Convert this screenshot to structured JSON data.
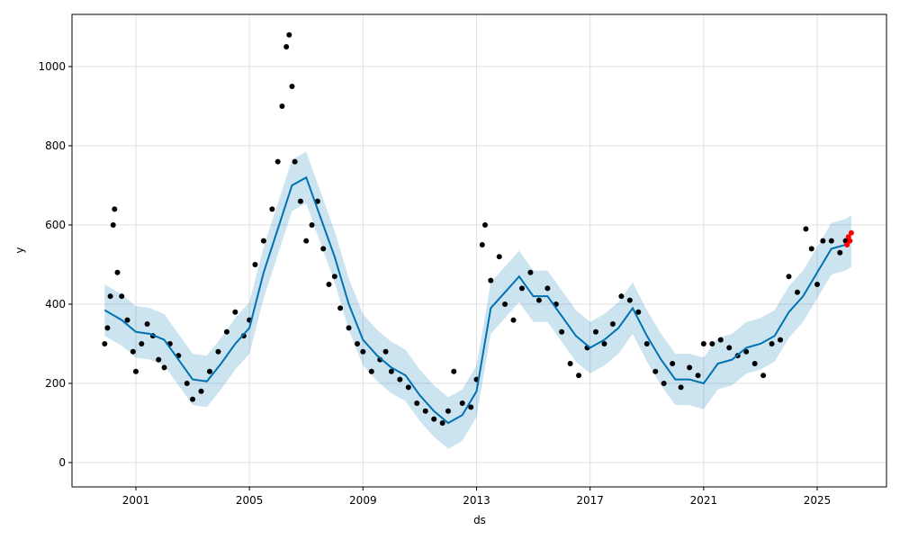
{
  "chart_data": {
    "type": "forecast",
    "xlabel": "ds",
    "ylabel": "y",
    "xlim": [
      1998.75,
      2027.44
    ],
    "ylim": [
      -61.4,
      1131.8
    ],
    "xticks": [
      2001,
      2005,
      2009,
      2013,
      2017,
      2021,
      2025
    ],
    "yticks": [
      0,
      200,
      400,
      600,
      800,
      1000
    ],
    "grid": true,
    "band": {
      "color": "#0072B2",
      "x": [
        1999.9,
        2000.5,
        2001,
        2001.5,
        2002,
        2002.5,
        2003,
        2003.5,
        2004,
        2004.5,
        2005,
        2005.5,
        2006,
        2006.5,
        2007,
        2007.5,
        2008,
        2008.5,
        2009,
        2009.5,
        2010,
        2010.5,
        2011,
        2011.5,
        2012,
        2012.5,
        2013,
        2013.5,
        2014,
        2014.5,
        2015,
        2015.5,
        2016,
        2016.5,
        2017,
        2017.5,
        2018,
        2018.5,
        2019,
        2019.5,
        2020,
        2020.5,
        2021,
        2021.5,
        2022,
        2022.5,
        2023,
        2023.5,
        2024,
        2024.5,
        2025,
        2025.5,
        2026,
        2026.2
      ],
      "lower": [
        320,
        295,
        265,
        260,
        245,
        195,
        145,
        140,
        185,
        235,
        275,
        415,
        525,
        635,
        655,
        555,
        455,
        335,
        245,
        205,
        175,
        155,
        105,
        65,
        35,
        55,
        115,
        325,
        365,
        405,
        355,
        355,
        305,
        255,
        225,
        245,
        275,
        325,
        255,
        195,
        145,
        145,
        135,
        185,
        195,
        225,
        235,
        255,
        315,
        355,
        415,
        475,
        485,
        495
      ],
      "upper": [
        450,
        425,
        395,
        390,
        375,
        325,
        275,
        270,
        315,
        365,
        405,
        545,
        655,
        765,
        785,
        685,
        585,
        465,
        375,
        335,
        305,
        285,
        235,
        195,
        165,
        185,
        245,
        455,
        495,
        535,
        485,
        485,
        435,
        385,
        355,
        375,
        405,
        455,
        385,
        325,
        275,
        275,
        265,
        315,
        325,
        355,
        365,
        385,
        445,
        485,
        545,
        605,
        615,
        625
      ]
    },
    "forecast": {
      "color": "#0072B2",
      "x": [
        1999.9,
        2000.5,
        2001,
        2001.5,
        2002,
        2002.5,
        2003,
        2003.5,
        2004,
        2004.5,
        2005,
        2005.5,
        2006,
        2006.5,
        2007,
        2007.5,
        2008,
        2008.5,
        2009,
        2009.5,
        2010,
        2010.5,
        2011,
        2011.5,
        2012,
        2012.5,
        2013,
        2013.5,
        2014,
        2014.5,
        2015,
        2015.5,
        2016,
        2016.5,
        2017,
        2017.5,
        2018,
        2018.5,
        2019,
        2019.5,
        2020,
        2020.5,
        2021,
        2021.5,
        2022,
        2022.5,
        2023,
        2023.5,
        2024,
        2024.5,
        2025,
        2025.5,
        2026,
        2026.2
      ],
      "values": [
        385,
        360,
        330,
        325,
        310,
        260,
        210,
        205,
        250,
        300,
        340,
        480,
        590,
        700,
        720,
        620,
        520,
        400,
        310,
        270,
        240,
        220,
        170,
        130,
        100,
        120,
        180,
        390,
        430,
        470,
        420,
        420,
        370,
        320,
        290,
        310,
        340,
        390,
        320,
        260,
        210,
        210,
        200,
        250,
        260,
        290,
        300,
        320,
        380,
        420,
        480,
        540,
        550,
        560
      ]
    },
    "observed": {
      "color": "#000000",
      "x": [
        1999.9,
        2000.0,
        2000.1,
        2000.2,
        2000.25,
        2000.35,
        2000.5,
        2000.7,
        2000.9,
        2001.0,
        2001.2,
        2001.4,
        2001.6,
        2001.8,
        2002.0,
        2002.2,
        2002.5,
        2002.8,
        2003.0,
        2003.3,
        2003.6,
        2003.9,
        2004.2,
        2004.5,
        2004.8,
        2005.0,
        2005.2,
        2005.5,
        2005.8,
        2006.0,
        2006.15,
        2006.3,
        2006.4,
        2006.5,
        2006.6,
        2006.8,
        2007.0,
        2007.2,
        2007.4,
        2007.6,
        2007.8,
        2008.0,
        2008.2,
        2008.5,
        2008.8,
        2009.0,
        2009.3,
        2009.6,
        2009.8,
        2010.0,
        2010.3,
        2010.6,
        2010.9,
        2011.2,
        2011.5,
        2011.8,
        2012.0,
        2012.2,
        2012.5,
        2012.8,
        2013.0,
        2013.2,
        2013.3,
        2013.5,
        2013.8,
        2014.0,
        2014.3,
        2014.6,
        2014.9,
        2015.2,
        2015.5,
        2015.8,
        2016.0,
        2016.3,
        2016.6,
        2016.9,
        2017.2,
        2017.5,
        2017.8,
        2018.1,
        2018.4,
        2018.7,
        2019.0,
        2019.3,
        2019.6,
        2019.9,
        2020.2,
        2020.5,
        2020.8,
        2021.0,
        2021.3,
        2021.6,
        2021.9,
        2022.2,
        2022.5,
        2022.8,
        2023.1,
        2023.4,
        2023.7,
        2024.0,
        2024.3,
        2024.6,
        2024.8,
        2025.0,
        2025.2,
        2025.5,
        2025.8,
        2026.0
      ],
      "values": [
        300,
        340,
        420,
        600,
        640,
        480,
        420,
        360,
        280,
        230,
        300,
        350,
        320,
        260,
        240,
        300,
        270,
        200,
        160,
        180,
        230,
        280,
        330,
        380,
        320,
        360,
        500,
        560,
        640,
        760,
        900,
        1050,
        1080,
        950,
        760,
        660,
        560,
        600,
        660,
        540,
        450,
        470,
        390,
        340,
        300,
        280,
        230,
        260,
        280,
        230,
        210,
        190,
        150,
        130,
        110,
        100,
        130,
        230,
        150,
        140,
        210,
        550,
        600,
        460,
        520,
        400,
        360,
        440,
        480,
        410,
        440,
        400,
        330,
        250,
        220,
        290,
        330,
        300,
        350,
        420,
        410,
        380,
        300,
        230,
        200,
        250,
        190,
        240,
        220,
        300,
        300,
        310,
        290,
        270,
        280,
        250,
        220,
        300,
        310,
        470,
        430,
        590,
        540,
        450,
        560,
        560,
        530,
        560
      ]
    },
    "future": {
      "color": "#ff0000",
      "x": [
        2026.05,
        2026.1,
        2026.15,
        2026.2
      ],
      "values": [
        550,
        570,
        560,
        580
      ]
    }
  }
}
